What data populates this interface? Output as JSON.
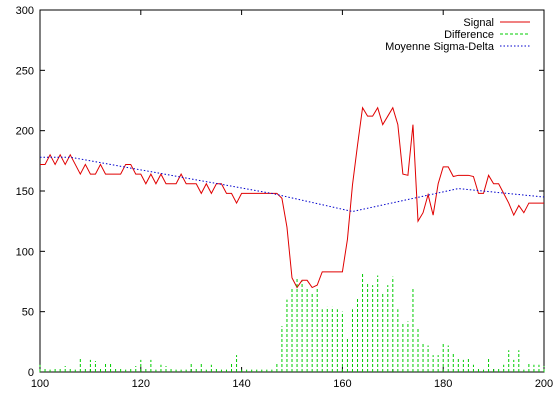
{
  "chart_data": {
    "type": "line",
    "title": "",
    "xlabel": "",
    "ylabel": "",
    "xlim": [
      100,
      200
    ],
    "ylim": [
      0,
      300
    ],
    "x_ticks": [
      "100",
      "120",
      "140",
      "160",
      "180",
      "200"
    ],
    "y_ticks": [
      "0",
      "50",
      "100",
      "150",
      "200",
      "250",
      "300"
    ],
    "x_tick_values": [
      100,
      120,
      140,
      160,
      180,
      200
    ],
    "y_tick_values": [
      0,
      50,
      100,
      150,
      200,
      250,
      300
    ],
    "grid": false,
    "legend_position": "top-right",
    "series": [
      {
        "name": "Signal",
        "style": "solid",
        "color": "#e00000",
        "x": [
          100,
          101,
          102,
          103,
          104,
          105,
          106,
          107,
          108,
          109,
          110,
          111,
          112,
          113,
          114,
          115,
          116,
          117,
          118,
          119,
          120,
          121,
          122,
          123,
          124,
          125,
          126,
          127,
          128,
          129,
          130,
          131,
          132,
          133,
          134,
          135,
          136,
          137,
          138,
          139,
          140,
          141,
          142,
          143,
          144,
          145,
          146,
          147,
          148,
          149,
          150,
          151,
          152,
          153,
          154,
          155,
          156,
          157,
          158,
          159,
          160,
          161,
          162,
          163,
          164,
          165,
          166,
          167,
          168,
          169,
          170,
          171,
          172,
          173,
          174,
          175,
          176,
          177,
          178,
          179,
          180,
          181,
          182,
          183,
          184,
          185,
          186,
          187,
          188,
          189,
          190,
          191,
          192,
          193,
          194,
          195,
          196,
          197,
          198,
          199,
          200
        ],
        "y": [
          172,
          172,
          180,
          172,
          180,
          172,
          180,
          172,
          164,
          172,
          164,
          164,
          172,
          164,
          164,
          164,
          164,
          172,
          172,
          164,
          164,
          156,
          164,
          156,
          164,
          156,
          156,
          156,
          164,
          156,
          156,
          156,
          148,
          156,
          148,
          156,
          156,
          148,
          148,
          140,
          148,
          148,
          148,
          148,
          148,
          148,
          148,
          148,
          144,
          120,
          78,
          70,
          76,
          76,
          70,
          72,
          83,
          83,
          83,
          83,
          83,
          110,
          155,
          188,
          219,
          212,
          212,
          219,
          205,
          212,
          219,
          205,
          164,
          163,
          205,
          125,
          132,
          147,
          130,
          156,
          170,
          170,
          162,
          163,
          163,
          163,
          162,
          148,
          148,
          163,
          156,
          156,
          148,
          140,
          130,
          138,
          132,
          140,
          140,
          140,
          140
        ]
      },
      {
        "name": "Difference",
        "style": "impulses",
        "color": "#00cc00",
        "x": [
          100,
          101,
          102,
          103,
          104,
          105,
          106,
          107,
          108,
          109,
          110,
          111,
          112,
          113,
          114,
          115,
          116,
          117,
          118,
          119,
          120,
          121,
          122,
          123,
          124,
          125,
          126,
          127,
          128,
          129,
          130,
          131,
          132,
          133,
          134,
          135,
          136,
          137,
          138,
          139,
          140,
          141,
          142,
          143,
          144,
          145,
          146,
          147,
          148,
          149,
          150,
          151,
          152,
          153,
          154,
          155,
          156,
          157,
          158,
          159,
          160,
          161,
          162,
          163,
          164,
          165,
          166,
          167,
          168,
          169,
          170,
          171,
          172,
          173,
          174,
          175,
          176,
          177,
          178,
          179,
          180,
          181,
          182,
          183,
          184,
          185,
          186,
          187,
          188,
          189,
          190,
          191,
          192,
          193,
          194,
          195,
          196,
          197,
          198,
          199,
          200
        ],
        "y": [
          6,
          3,
          2,
          4,
          3,
          5,
          4,
          2,
          12,
          4,
          10,
          9,
          3,
          8,
          7,
          4,
          3,
          2,
          4,
          5,
          10,
          4,
          10,
          2,
          6,
          5,
          3,
          2,
          2,
          2,
          8,
          4,
          8,
          2,
          6,
          3,
          2,
          2,
          8,
          14,
          2,
          2,
          2,
          2,
          2,
          2,
          2,
          8,
          38,
          60,
          70,
          78,
          75,
          69,
          65,
          70,
          52,
          54,
          54,
          52,
          50,
          28,
          52,
          62,
          82,
          74,
          72,
          80,
          65,
          72,
          79,
          52,
          40,
          42,
          70,
          36,
          24,
          22,
          14,
          14,
          24,
          22,
          15,
          12,
          10,
          12,
          6,
          4,
          2,
          12,
          4,
          4,
          6,
          18,
          10,
          18,
          2,
          8,
          6,
          6,
          5
        ]
      },
      {
        "name": "Moyenne Sigma-Delta",
        "style": "dotted",
        "color": "#0000cc",
        "x": [
          100,
          106,
          146,
          162,
          183,
          200
        ],
        "y": [
          178,
          178,
          148,
          133,
          152,
          145
        ]
      }
    ]
  }
}
